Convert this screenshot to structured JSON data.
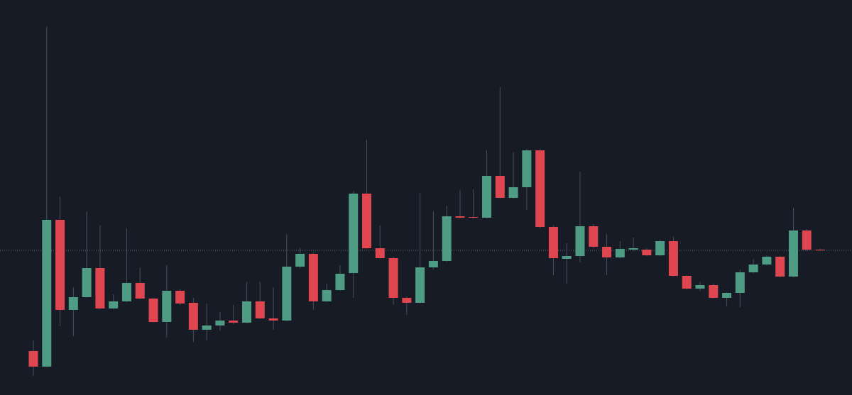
{
  "chart_data": {
    "type": "candlestick",
    "ylim": [
      0,
      557
    ],
    "up_color": "#4f9c84",
    "down_color": "#e0464f",
    "last_price": 204,
    "last_price_color": "#6b6f7a",
    "series": {
      "open": [
        62,
        40,
        247,
        120,
        138,
        179,
        122,
        132,
        158,
        136,
        103,
        147,
        130,
        92,
        98,
        105,
        102,
        132,
        108,
        105,
        181,
        199,
        132,
        148,
        172,
        284,
        207,
        193,
        137,
        130,
        180,
        189,
        252,
        251,
        250,
        309,
        278,
        293,
        345,
        237,
        192,
        196,
        238,
        209,
        194,
        205,
        205,
        197,
        217,
        168,
        150,
        155,
        137,
        144,
        173,
        184,
        195,
        167,
        232,
        205
      ],
      "high": [
        77,
        519,
        279,
        152,
        259,
        239,
        142,
        235,
        180,
        137,
        183,
        149,
        137,
        129,
        117,
        127,
        159,
        159,
        152,
        227,
        207,
        201,
        157,
        183,
        287,
        360,
        239,
        195,
        139,
        285,
        259,
        267,
        289,
        290,
        345,
        434,
        342,
        347,
        347,
        239,
        214,
        315,
        241,
        227,
        217,
        222,
        207,
        219,
        223,
        169,
        159,
        157,
        145,
        177,
        192,
        197,
        196,
        264,
        234,
        206
      ],
      "low": [
        27,
        39,
        97,
        83,
        137,
        121,
        121,
        131,
        135,
        102,
        81,
        127,
        75,
        77,
        91,
        100,
        101,
        107,
        92,
        104,
        179,
        120,
        131,
        147,
        137,
        206,
        192,
        127,
        113,
        129,
        177,
        188,
        249,
        249,
        249,
        277,
        277,
        261,
        235,
        169,
        157,
        187,
        207,
        169,
        193,
        203,
        196,
        196,
        167,
        149,
        147,
        136,
        125,
        124,
        172,
        183,
        166,
        166,
        203,
        203
      ],
      "close": [
        40,
        247,
        120,
        138,
        179,
        122,
        132,
        158,
        136,
        103,
        147,
        129,
        92,
        98,
        105,
        102,
        132,
        108,
        105,
        181,
        199,
        132,
        148,
        171,
        284,
        207,
        193,
        137,
        130,
        180,
        189,
        252,
        250,
        250,
        309,
        278,
        293,
        345,
        237,
        193,
        196,
        238,
        209,
        194,
        206,
        207,
        197,
        217,
        168,
        150,
        155,
        137,
        144,
        173,
        184,
        195,
        167,
        232,
        205,
        204
      ]
    }
  }
}
